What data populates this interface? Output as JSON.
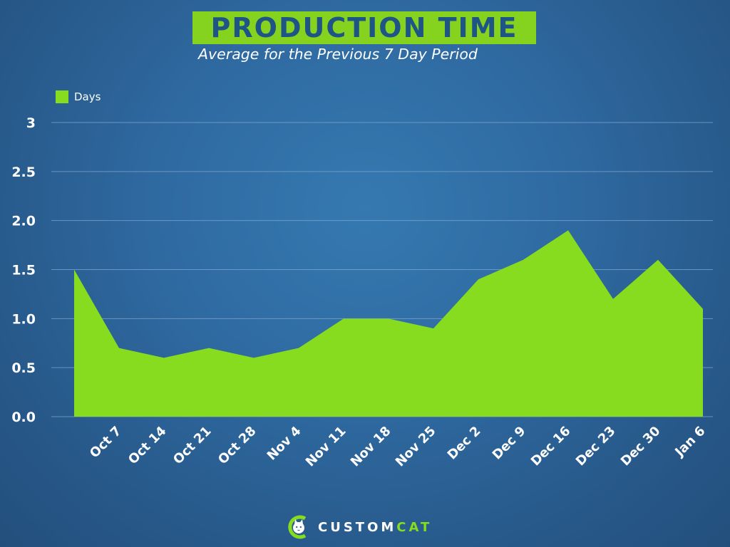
{
  "title": "PRODUCTION TIME",
  "subtitle": "Average for the Previous 7 Day Period",
  "legend": {
    "label": "Days"
  },
  "brand": {
    "name_part1": "CUSTOM",
    "name_part2": "CAT"
  },
  "colors": {
    "area": "#88dc1f",
    "title_bg": "#86d31f",
    "title_text": "#1e5486",
    "gridline": "#7fa7cf",
    "text": "#ffffff"
  },
  "chart_data": {
    "type": "area",
    "title": "PRODUCTION TIME",
    "subtitle": "Average for the Previous 7 Day Period",
    "xlabel": "",
    "ylabel": "",
    "x_tick_labels": [
      "Oct 7",
      "Oct 14",
      "Oct 21",
      "Oct 28",
      "Nov 4",
      "Nov 11",
      "Nov 18",
      "Nov 25",
      "Dec 2",
      "Dec 9",
      "Dec 16",
      "Dec 23",
      "Dec 30",
      "Jan 6"
    ],
    "y_tick_labels": [
      "0.0",
      "0.5",
      "1.0",
      "1.5",
      "2.0",
      "2.5",
      "3"
    ],
    "ylim": [
      0,
      3
    ],
    "grid": true,
    "legend_position": "top-left",
    "series": [
      {
        "name": "Days",
        "values": [
          1.5,
          0.7,
          0.6,
          0.7,
          0.6,
          0.7,
          1.0,
          1.0,
          0.9,
          1.4,
          1.6,
          1.9,
          1.2,
          1.6,
          1.1
        ]
      }
    ]
  }
}
